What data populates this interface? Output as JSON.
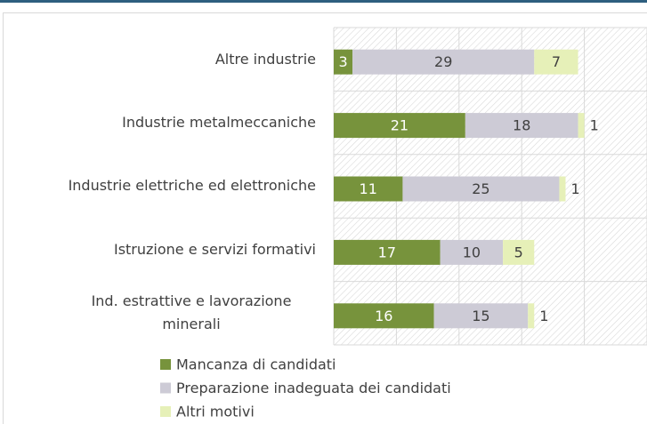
{
  "chart_data": {
    "type": "stacked_barh",
    "categories": [
      "Altre industrie",
      "Industrie metalmeccaniche",
      "Industrie elettriche ed elettroniche",
      "Istruzione e servizi formativi",
      "Ind. estrattive e lavorazione minerali"
    ],
    "series": [
      {
        "name": "Mancanza di candidati",
        "color": "#77933c",
        "values": [
          3,
          21,
          11,
          17,
          16
        ]
      },
      {
        "name": "Preparazione inadeguata dei candidati",
        "color": "#cdcbd6",
        "values": [
          29,
          18,
          25,
          10,
          15
        ]
      },
      {
        "name": "Altri motivi",
        "color": "#e6f0b8",
        "values": [
          7,
          1,
          1,
          5,
          1
        ]
      }
    ],
    "xlim": [
      0,
      50
    ],
    "xticks": [
      0,
      10,
      20,
      30,
      40,
      50
    ],
    "grid": true,
    "legend": "bottom"
  }
}
